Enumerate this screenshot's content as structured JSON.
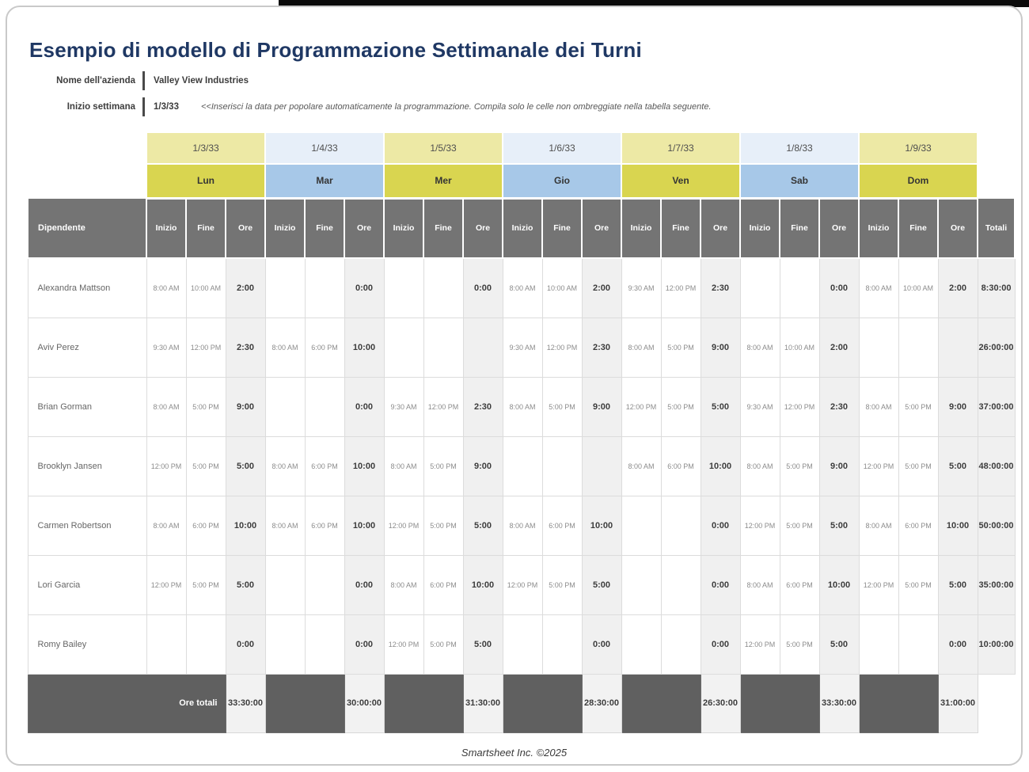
{
  "title": "Esempio di modello di Programmazione Settimanale dei Turni",
  "company": {
    "label": "Nome dell'azienda",
    "value": "Valley View Industries"
  },
  "week_start": {
    "label": "Inizio settimana",
    "value": "1/3/33",
    "hint": "<<Inserisci la data per popolare automaticamente la programmazione. Compila solo le celle non ombreggiate nella tabella seguente."
  },
  "table": {
    "employee_header": "Dipendente",
    "sub_headers": [
      "Inizio",
      "Fine",
      "Ore"
    ],
    "totals_header": "Totali",
    "totals_row_label": "Ore totali",
    "days": [
      {
        "date": "1/3/33",
        "name": "Lun",
        "theme": "yellow"
      },
      {
        "date": "1/4/33",
        "name": "Mar",
        "theme": "blue"
      },
      {
        "date": "1/5/33",
        "name": "Mer",
        "theme": "yellow"
      },
      {
        "date": "1/6/33",
        "name": "Gio",
        "theme": "blue"
      },
      {
        "date": "1/7/33",
        "name": "Ven",
        "theme": "yellow"
      },
      {
        "date": "1/8/33",
        "name": "Sab",
        "theme": "blue"
      },
      {
        "date": "1/9/33",
        "name": "Dom",
        "theme": "yellow"
      }
    ],
    "rows": [
      {
        "employee": "Alexandra Mattson",
        "shifts": [
          [
            "8:00 AM",
            "10:00 AM",
            "2:00"
          ],
          [
            "",
            "",
            "0:00"
          ],
          [
            "",
            "",
            "0:00"
          ],
          [
            "8:00 AM",
            "10:00 AM",
            "2:00"
          ],
          [
            "9:30 AM",
            "12:00 PM",
            "2:30"
          ],
          [
            "",
            "",
            "0:00"
          ],
          [
            "8:00 AM",
            "10:00 AM",
            "2:00"
          ]
        ],
        "total": "8:30:00"
      },
      {
        "employee": "Aviv Perez",
        "shifts": [
          [
            "9:30 AM",
            "12:00 PM",
            "2:30"
          ],
          [
            "8:00 AM",
            "6:00 PM",
            "10:00"
          ],
          [
            "",
            "",
            ""
          ],
          [
            "9:30 AM",
            "12:00 PM",
            "2:30"
          ],
          [
            "8:00 AM",
            "5:00 PM",
            "9:00"
          ],
          [
            "8:00 AM",
            "10:00 AM",
            "2:00"
          ],
          [
            "",
            "",
            ""
          ]
        ],
        "total": "26:00:00"
      },
      {
        "employee": "Brian Gorman",
        "shifts": [
          [
            "8:00 AM",
            "5:00 PM",
            "9:00"
          ],
          [
            "",
            "",
            "0:00"
          ],
          [
            "9:30 AM",
            "12:00 PM",
            "2:30"
          ],
          [
            "8:00 AM",
            "5:00 PM",
            "9:00"
          ],
          [
            "12:00 PM",
            "5:00 PM",
            "5:00"
          ],
          [
            "9:30 AM",
            "12:00 PM",
            "2:30"
          ],
          [
            "8:00 AM",
            "5:00 PM",
            "9:00"
          ]
        ],
        "total": "37:00:00"
      },
      {
        "employee": "Brooklyn Jansen",
        "shifts": [
          [
            "12:00 PM",
            "5:00 PM",
            "5:00"
          ],
          [
            "8:00 AM",
            "6:00 PM",
            "10:00"
          ],
          [
            "8:00 AM",
            "5:00 PM",
            "9:00"
          ],
          [
            "",
            "",
            ""
          ],
          [
            "8:00 AM",
            "6:00 PM",
            "10:00"
          ],
          [
            "8:00 AM",
            "5:00 PM",
            "9:00"
          ],
          [
            "12:00 PM",
            "5:00 PM",
            "5:00"
          ]
        ],
        "total": "48:00:00"
      },
      {
        "employee": "Carmen Robertson",
        "shifts": [
          [
            "8:00 AM",
            "6:00 PM",
            "10:00"
          ],
          [
            "8:00 AM",
            "6:00 PM",
            "10:00"
          ],
          [
            "12:00 PM",
            "5:00 PM",
            "5:00"
          ],
          [
            "8:00 AM",
            "6:00 PM",
            "10:00"
          ],
          [
            "",
            "",
            "0:00"
          ],
          [
            "12:00 PM",
            "5:00 PM",
            "5:00"
          ],
          [
            "8:00 AM",
            "6:00 PM",
            "10:00"
          ]
        ],
        "total": "50:00:00"
      },
      {
        "employee": "Lori Garcia",
        "shifts": [
          [
            "12:00 PM",
            "5:00 PM",
            "5:00"
          ],
          [
            "",
            "",
            "0:00"
          ],
          [
            "8:00 AM",
            "6:00 PM",
            "10:00"
          ],
          [
            "12:00 PM",
            "5:00 PM",
            "5:00"
          ],
          [
            "",
            "",
            "0:00"
          ],
          [
            "8:00 AM",
            "6:00 PM",
            "10:00"
          ],
          [
            "12:00 PM",
            "5:00 PM",
            "5:00"
          ]
        ],
        "total": "35:00:00"
      },
      {
        "employee": "Romy Bailey",
        "shifts": [
          [
            "",
            "",
            "0:00"
          ],
          [
            "",
            "",
            "0:00"
          ],
          [
            "12:00 PM",
            "5:00 PM",
            "5:00"
          ],
          [
            "",
            "",
            "0:00"
          ],
          [
            "",
            "",
            "0:00"
          ],
          [
            "12:00 PM",
            "5:00 PM",
            "5:00"
          ],
          [
            "",
            "",
            "0:00"
          ]
        ],
        "total": "10:00:00"
      }
    ],
    "day_totals": [
      "33:30:00",
      "30:00:00",
      "31:30:00",
      "28:30:00",
      "26:30:00",
      "33:30:00",
      "31:00:00"
    ]
  },
  "footer_credit": "Smartsheet Inc. ©2025",
  "colors": {
    "title": "#1F3864",
    "date_yellow": "#EDE9A5",
    "date_blue": "#E7EFF9",
    "day_yellow": "#D9D550",
    "day_blue": "#A7C8E8",
    "header_gray": "#747474",
    "footer_gray": "#606060",
    "shaded_cell": "#F0F0F0"
  }
}
